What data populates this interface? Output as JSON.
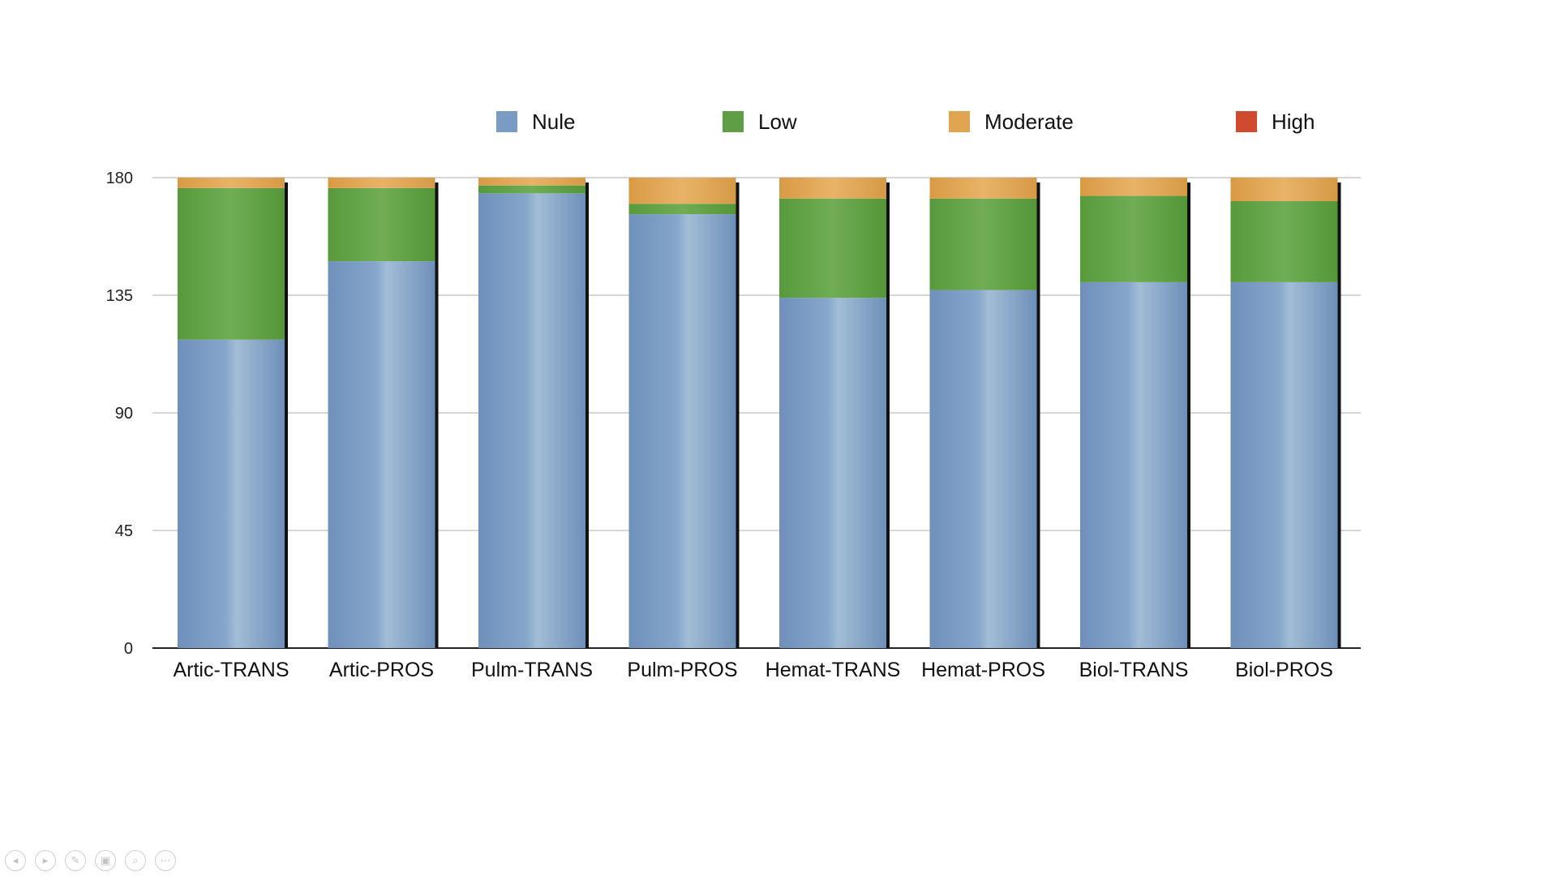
{
  "chart_data": {
    "type": "bar",
    "stacked": true,
    "categories": [
      "Artic-TRANS",
      "Artic-PROS",
      "Pulm-TRANS",
      "Pulm-PROS",
      "Hemat-TRANS",
      "Hemat-PROS",
      "Biol-TRANS",
      "Biol-PROS"
    ],
    "series": [
      {
        "name": "Nule",
        "color": "#7a9bc2",
        "values": [
          118,
          148,
          174,
          166,
          134,
          137,
          140,
          140
        ]
      },
      {
        "name": "Low",
        "color": "#5f9e45",
        "values": [
          58,
          28,
          3,
          4,
          38,
          35,
          33,
          31
        ]
      },
      {
        "name": "Moderate",
        "color": "#e0a550",
        "values": [
          4,
          4,
          3,
          10,
          8,
          8,
          7,
          9
        ]
      },
      {
        "name": "High",
        "color": "#cf4a2e",
        "values": [
          0,
          0,
          0,
          0,
          0,
          0,
          0,
          0
        ]
      }
    ],
    "yticks": [
      0,
      45,
      90,
      135,
      180
    ],
    "ylim": [
      0,
      180
    ],
    "grid": true,
    "legend_position": "top"
  },
  "controls": [
    {
      "name": "previous",
      "glyph": "◂"
    },
    {
      "name": "next",
      "glyph": "▸"
    },
    {
      "name": "pen",
      "glyph": "✎"
    },
    {
      "name": "slides",
      "glyph": "▣"
    },
    {
      "name": "zoom",
      "glyph": "⌕"
    },
    {
      "name": "more",
      "glyph": "⋯"
    }
  ]
}
